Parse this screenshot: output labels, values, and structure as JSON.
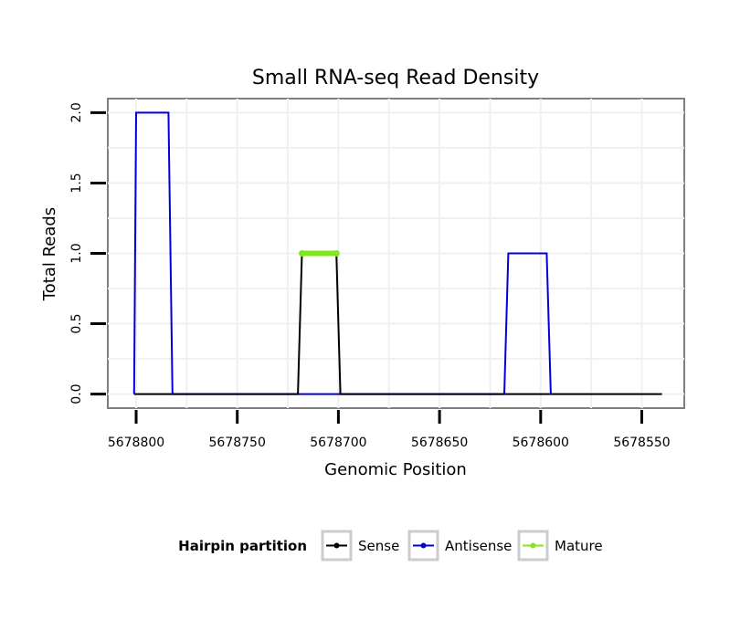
{
  "chart_data": {
    "type": "line",
    "title": "Small RNA-seq Read Density",
    "xlabel": "Genomic Position",
    "ylabel": "Total Reads",
    "x_reversed": true,
    "xlim": [
      5678814,
      5678529
    ],
    "ylim": [
      -0.1,
      2.1
    ],
    "xticks": [
      5678800,
      5678750,
      5678700,
      5678650,
      5678600,
      5678550
    ],
    "xtick_labels": [
      "5678800",
      "5678750",
      "5678700",
      "5678650",
      "5678600",
      "5678550"
    ],
    "yticks": [
      0,
      0.5,
      1,
      1.5,
      2
    ],
    "ytick_labels": [
      "0.0",
      "0.5",
      "1.0",
      "1.5",
      "2.0"
    ],
    "grid": true,
    "legend_position": "bottom",
    "legend_title": "Hairpin partition",
    "series": [
      {
        "name": "Sense",
        "color": "#000000",
        "x": [
          5678801,
          5678720,
          5678718,
          5678701,
          5678699,
          5678540
        ],
        "y": [
          0,
          0,
          1,
          1,
          0,
          0
        ]
      },
      {
        "name": "Antisense",
        "color": "#0000dd",
        "x": [
          5678801,
          5678800,
          5678784,
          5678782,
          5678618,
          5678616,
          5678597,
          5678595
        ],
        "y": [
          0,
          2,
          2,
          0,
          0,
          1,
          1,
          0
        ]
      },
      {
        "name": "Mature",
        "color": "#7fe81c",
        "x": [
          5678718,
          5678701
        ],
        "y": [
          1,
          1
        ]
      }
    ]
  }
}
